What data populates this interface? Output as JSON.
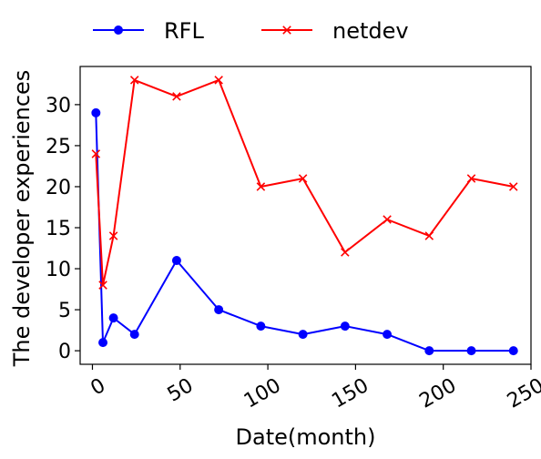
{
  "chart_data": {
    "type": "line",
    "xlabel": "Date(month)",
    "ylabel": "The developer experiences",
    "xlim": [
      -7,
      250
    ],
    "ylim": [
      -1.65,
      34.65
    ],
    "xticks": [
      0,
      50,
      100,
      150,
      200,
      250
    ],
    "yticks": [
      0,
      5,
      10,
      15,
      20,
      25,
      30
    ],
    "legend_position": "top",
    "grid": false,
    "series": [
      {
        "name": "RFL",
        "color": "#0000ff",
        "marker": "circle",
        "x": [
          2,
          6,
          12,
          24,
          48,
          72,
          96,
          120,
          144,
          168,
          192,
          216,
          240
        ],
        "y": [
          29,
          1,
          4,
          2,
          11,
          5,
          3,
          2,
          3,
          2,
          0,
          0,
          0
        ]
      },
      {
        "name": "netdev",
        "color": "#ff0000",
        "marker": "x",
        "x": [
          2,
          6,
          12,
          24,
          48,
          72,
          96,
          120,
          144,
          168,
          192,
          216,
          240
        ],
        "y": [
          24,
          8,
          14,
          33,
          31,
          33,
          20,
          21,
          12,
          16,
          14,
          21,
          20
        ]
      }
    ]
  }
}
